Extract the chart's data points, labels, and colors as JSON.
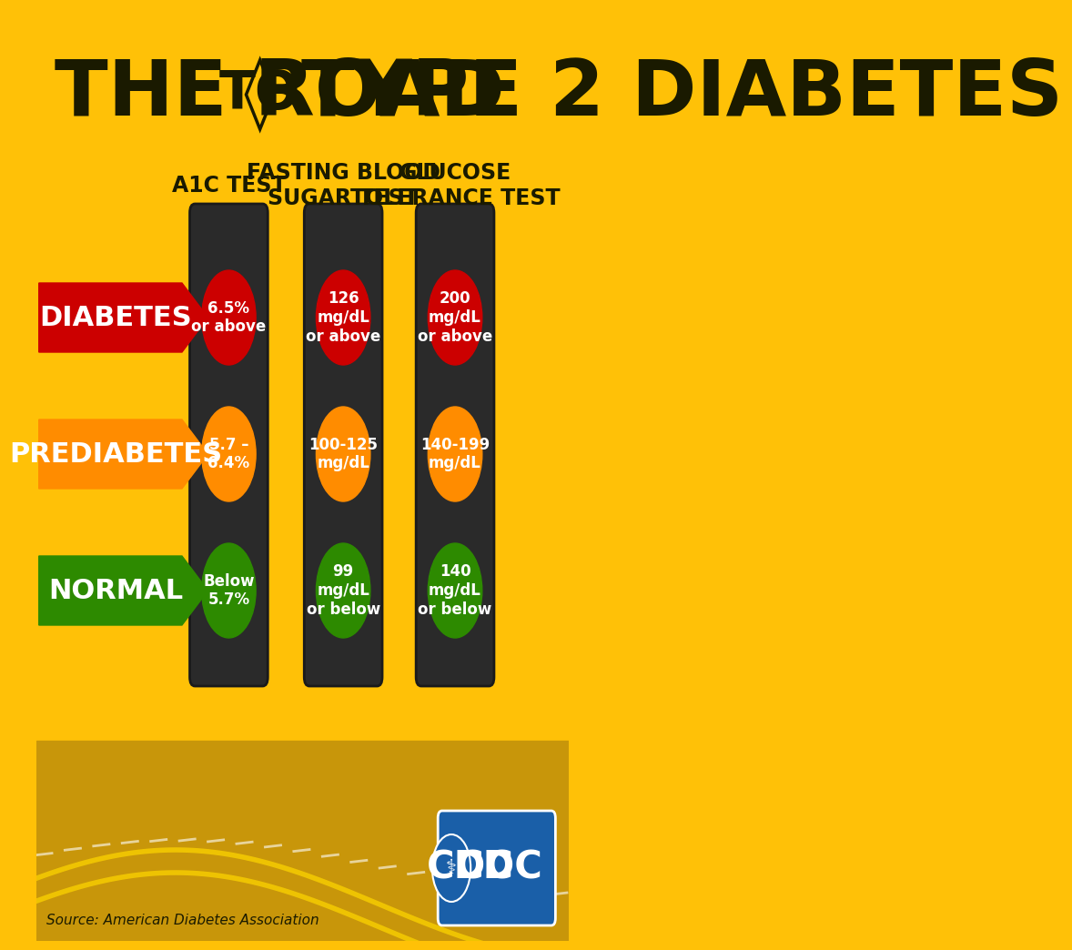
{
  "bg_color": "#FFC107",
  "title_line1": "THE ROAD",
  "title_to": "TO",
  "title_line2": "TYPE 2 DIABETES",
  "title_color": "#1a1a00",
  "subtitle_color": "#1a1a00",
  "arrow_labels": [
    "DIABETES",
    "PREDIABETES",
    "NORMAL"
  ],
  "arrow_colors": [
    "#cc0000",
    "#ff8c00",
    "#2d8a00"
  ],
  "test_headers": [
    "A1C TEST",
    "FASTING BLOOD\nSUGAR TEST",
    "GLUCOSE\nTOLERANCE TEST"
  ],
  "light_colors": [
    "#cc0000",
    "#ff8c00",
    "#2d8a00"
  ],
  "light_texts": [
    [
      "6.5%\nor above",
      "5.7 –\n6.4%",
      "Below\n5.7%"
    ],
    [
      "126\nmg/dL\nor above",
      "100-125\nmg/dL",
      "99\nmg/dL\nor below"
    ],
    [
      "200\nmg/dL\nor above",
      "140-199\nmg/dL",
      "140\nmg/dL\nor below"
    ]
  ],
  "source_text": "Source: American Diabetes Association",
  "road_color": "#e6a000",
  "road_stripe": "#ffffff"
}
